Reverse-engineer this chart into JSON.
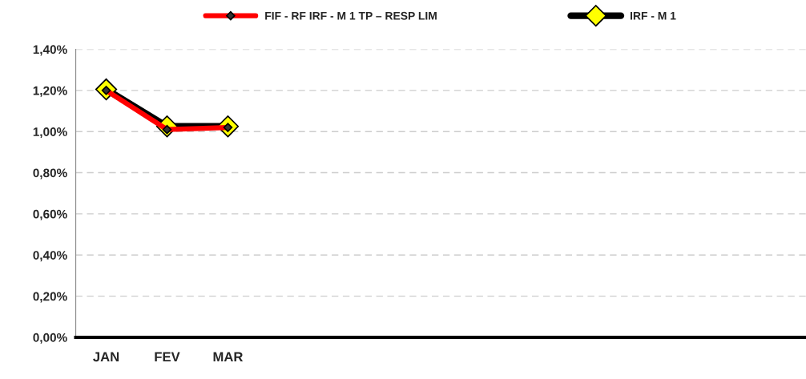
{
  "chart_data": {
    "type": "line",
    "categories": [
      "JAN",
      "FEV",
      "MAR",
      null,
      null,
      null,
      null,
      null,
      null,
      null,
      null,
      null
    ],
    "series": [
      {
        "name": "FIF - RF IRF - M 1 TP – RESP LIM",
        "color": "#ff0000",
        "values": [
          1.2,
          1.01,
          1.02,
          null,
          null,
          null,
          null,
          null,
          null,
          null,
          null,
          null
        ]
      },
      {
        "name": "IRF - M 1",
        "color": "#000000",
        "values": [
          1.205,
          1.025,
          1.025,
          null,
          null,
          null,
          null,
          null,
          null,
          null,
          null,
          null
        ]
      }
    ],
    "ylim": [
      0,
      1.4
    ],
    "yticks": [
      {
        "value": 0,
        "label": "0,00%"
      },
      {
        "value": 0.2,
        "label": "0,20%"
      },
      {
        "value": 0.4,
        "label": "0,40%"
      },
      {
        "value": 0.6,
        "label": "0,60%"
      },
      {
        "value": 0.8,
        "label": "0,80%"
      },
      {
        "value": 1.0,
        "label": "1,00%"
      },
      {
        "value": 1.2,
        "label": "1,20%"
      },
      {
        "value": 1.4,
        "label": "1,40%"
      }
    ],
    "grid": "y",
    "legend": "top",
    "marker": "diamond",
    "line_style": "solid"
  }
}
